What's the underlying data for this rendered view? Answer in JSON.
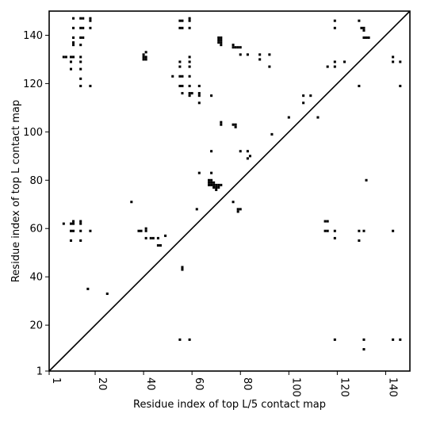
{
  "chart_data": {
    "type": "scatter",
    "xlabel": "Residue index of top L/5 contact map",
    "ylabel": "Residue index of top L contact map",
    "xlim": [
      1,
      150
    ],
    "ylim": [
      1,
      150
    ],
    "x_ticks": [
      1,
      20,
      40,
      60,
      80,
      100,
      120,
      140
    ],
    "y_ticks": [
      1,
      20,
      40,
      60,
      80,
      100,
      120,
      140
    ],
    "x_tick_labels": [
      "1",
      "20",
      "40",
      "60",
      "80",
      "100",
      "120",
      "140"
    ],
    "y_tick_labels": [
      "1",
      "20",
      "40",
      "60",
      "80",
      "100",
      "120",
      "140"
    ],
    "x_tick_rotation_deg": 90,
    "grid": false,
    "diagonal": true,
    "marker": "square",
    "marker_color": "#000000",
    "series": [
      {
        "values": [
          [
            11,
            147
          ],
          [
            11,
            143
          ],
          [
            11,
            139
          ],
          [
            11,
            137
          ],
          [
            11,
            136
          ],
          [
            14,
            147
          ],
          [
            15,
            147
          ],
          [
            14,
            143
          ],
          [
            15,
            143
          ],
          [
            18,
            147
          ],
          [
            18,
            146
          ],
          [
            18,
            143
          ],
          [
            14,
            139
          ],
          [
            15,
            139
          ],
          [
            14,
            136
          ],
          [
            7,
            131
          ],
          [
            8,
            131
          ],
          [
            10,
            131
          ],
          [
            11,
            131
          ],
          [
            10,
            129
          ],
          [
            14,
            131
          ],
          [
            14,
            129
          ],
          [
            10,
            126
          ],
          [
            14,
            126
          ],
          [
            14,
            122
          ],
          [
            14,
            119
          ],
          [
            18,
            119
          ],
          [
            40,
            132
          ],
          [
            41,
            133
          ],
          [
            40,
            131
          ],
          [
            41,
            131
          ],
          [
            40,
            130
          ],
          [
            41,
            130
          ],
          [
            55,
            146
          ],
          [
            56,
            146
          ],
          [
            59,
            147
          ],
          [
            59,
            146
          ],
          [
            55,
            143
          ],
          [
            56,
            143
          ],
          [
            59,
            143
          ],
          [
            55,
            129
          ],
          [
            55,
            127
          ],
          [
            55,
            123
          ],
          [
            56,
            123
          ],
          [
            52,
            123
          ],
          [
            59,
            131
          ],
          [
            59,
            129
          ],
          [
            59,
            127
          ],
          [
            59,
            123
          ],
          [
            55,
            119
          ],
          [
            56,
            119
          ],
          [
            59,
            119
          ],
          [
            63,
            119
          ],
          [
            56,
            116
          ],
          [
            59,
            116
          ],
          [
            60,
            116
          ],
          [
            59,
            115
          ],
          [
            63,
            116
          ],
          [
            63,
            115
          ],
          [
            63,
            112
          ],
          [
            68,
            115
          ],
          [
            71,
            139
          ],
          [
            72,
            139
          ],
          [
            71,
            138
          ],
          [
            72,
            138
          ],
          [
            71,
            137
          ],
          [
            72,
            137
          ],
          [
            72,
            136
          ],
          [
            77,
            136
          ],
          [
            77,
            135
          ],
          [
            78,
            135
          ],
          [
            79,
            135
          ],
          [
            80,
            135
          ],
          [
            80,
            132
          ],
          [
            83,
            132
          ],
          [
            88,
            132
          ],
          [
            92,
            132
          ],
          [
            88,
            130
          ],
          [
            92,
            127
          ],
          [
            72,
            104
          ],
          [
            72,
            103
          ],
          [
            77,
            103
          ],
          [
            78,
            103
          ],
          [
            78,
            102
          ],
          [
            80,
            92
          ],
          [
            83,
            92
          ],
          [
            84,
            90
          ],
          [
            83,
            89
          ],
          [
            93,
            99
          ],
          [
            100,
            106
          ],
          [
            106,
            115
          ],
          [
            109,
            115
          ],
          [
            106,
            112
          ],
          [
            112,
            106
          ],
          [
            116,
            127
          ],
          [
            119,
            127
          ],
          [
            119,
            129
          ],
          [
            123,
            129
          ],
          [
            119,
            146
          ],
          [
            119,
            143
          ],
          [
            129,
            146
          ],
          [
            130,
            143
          ],
          [
            131,
            143
          ],
          [
            131,
            142
          ],
          [
            131,
            139
          ],
          [
            132,
            139
          ],
          [
            133,
            139
          ],
          [
            129,
            119
          ],
          [
            143,
            131
          ],
          [
            143,
            129
          ],
          [
            146,
            129
          ],
          [
            146,
            119
          ],
          [
            63,
            83
          ],
          [
            68,
            83
          ],
          [
            68,
            92
          ],
          [
            67,
            80
          ],
          [
            68,
            80
          ],
          [
            67,
            79
          ],
          [
            68,
            79
          ],
          [
            69,
            79
          ],
          [
            67,
            78
          ],
          [
            68,
            78
          ],
          [
            69,
            78
          ],
          [
            70,
            78
          ],
          [
            71,
            78
          ],
          [
            72,
            78
          ],
          [
            69,
            77
          ],
          [
            70,
            77
          ],
          [
            71,
            77
          ],
          [
            70,
            76
          ],
          [
            77,
            71
          ],
          [
            79,
            68
          ],
          [
            80,
            68
          ],
          [
            79,
            67
          ],
          [
            62,
            68
          ],
          [
            35,
            71
          ],
          [
            7,
            62
          ],
          [
            10,
            62
          ],
          [
            11,
            62
          ],
          [
            11,
            63
          ],
          [
            14,
            63
          ],
          [
            14,
            62
          ],
          [
            10,
            59
          ],
          [
            11,
            59
          ],
          [
            14,
            59
          ],
          [
            18,
            59
          ],
          [
            10,
            55
          ],
          [
            14,
            55
          ],
          [
            38,
            59
          ],
          [
            39,
            59
          ],
          [
            41,
            60
          ],
          [
            41,
            59
          ],
          [
            41,
            56
          ],
          [
            43,
            56
          ],
          [
            44,
            56
          ],
          [
            46,
            56
          ],
          [
            49,
            57
          ],
          [
            46,
            53
          ],
          [
            47,
            53
          ],
          [
            56,
            44
          ],
          [
            56,
            43
          ],
          [
            17,
            35
          ],
          [
            25,
            33
          ],
          [
            55,
            14
          ],
          [
            59,
            14
          ],
          [
            115,
            63
          ],
          [
            116,
            63
          ],
          [
            115,
            59
          ],
          [
            116,
            59
          ],
          [
            119,
            59
          ],
          [
            119,
            56
          ],
          [
            129,
            59
          ],
          [
            131,
            59
          ],
          [
            129,
            55
          ],
          [
            132,
            80
          ],
          [
            119,
            14
          ],
          [
            131,
            14
          ],
          [
            131,
            10
          ],
          [
            143,
            14
          ],
          [
            146,
            14
          ],
          [
            143,
            59
          ]
        ]
      }
    ]
  }
}
